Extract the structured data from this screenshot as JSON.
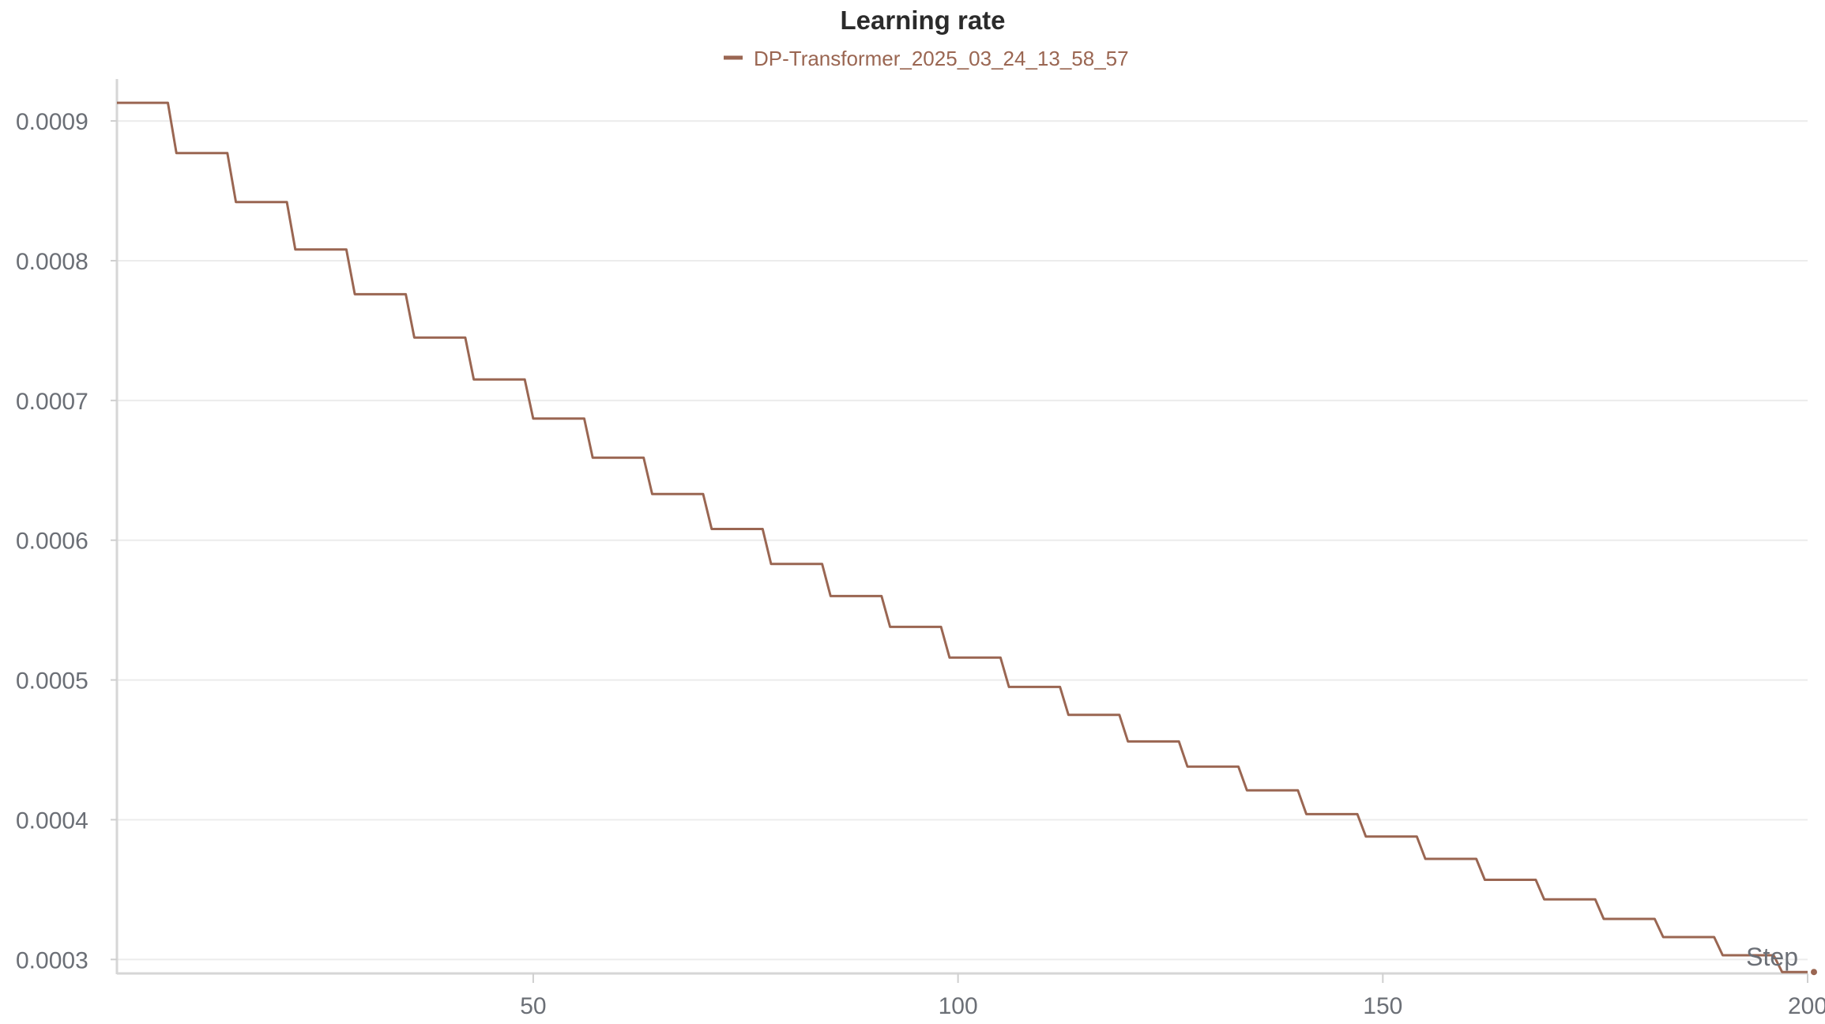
{
  "chart_data": {
    "type": "line",
    "title": "Learning rate",
    "xlabel": "Step",
    "ylabel": "",
    "xlim": [
      1,
      200
    ],
    "ylim": [
      0.00029,
      0.00093
    ],
    "x_ticks": [
      50,
      100,
      150,
      200
    ],
    "y_ticks": [
      0.0003,
      0.0004,
      0.0005,
      0.0006,
      0.0007,
      0.0008,
      0.0009
    ],
    "y_tick_labels": [
      "0.0003",
      "0.0004",
      "0.0005",
      "0.0006",
      "0.0007",
      "0.0008",
      "0.0009"
    ],
    "x_tick_labels": [
      "50",
      "100",
      "150",
      "200"
    ],
    "grid": true,
    "legend_position": "top-center",
    "series": [
      {
        "name": "DP-Transformer_2025_03_24_13_58_57",
        "color": "#9a6652",
        "schedule": "step",
        "step_size": 7,
        "x_start": 1,
        "x_end": 200,
        "levels": [
          0.000913,
          0.000877,
          0.000842,
          0.000808,
          0.000776,
          0.000745,
          0.000715,
          0.000687,
          0.000659,
          0.000633,
          0.000608,
          0.000583,
          0.00056,
          0.000538,
          0.000516,
          0.000495,
          0.000475,
          0.000456,
          0.000438,
          0.000421,
          0.000404,
          0.000388,
          0.000372,
          0.000357,
          0.000343,
          0.000329,
          0.000316,
          0.000303,
          0.000291
        ]
      }
    ]
  }
}
